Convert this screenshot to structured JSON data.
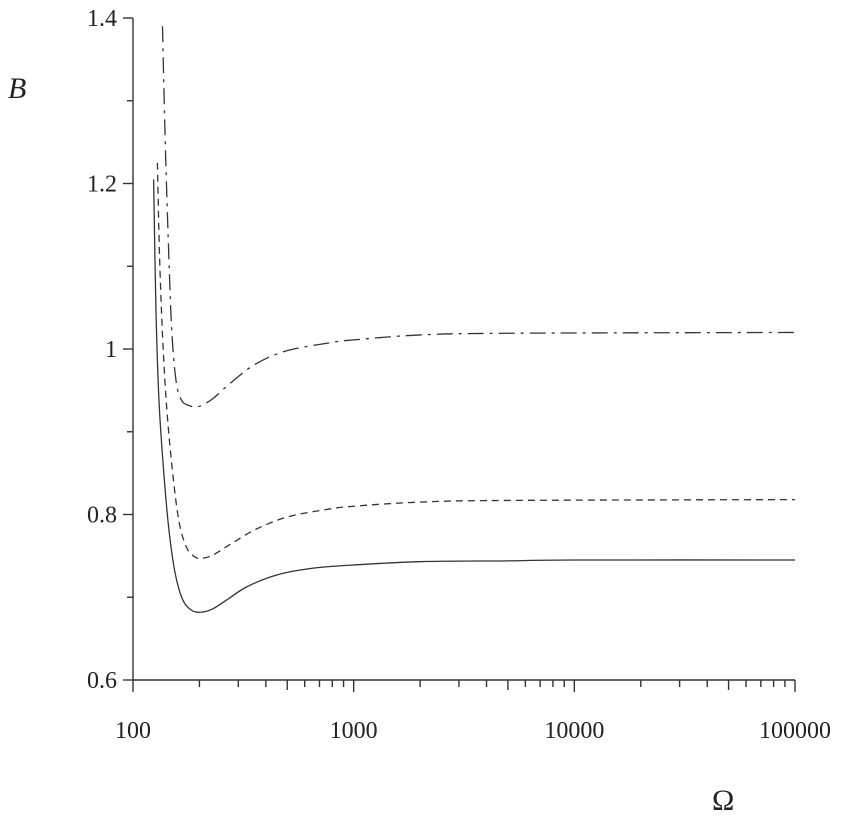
{
  "chart_data": {
    "type": "line",
    "xlabel": "Ω",
    "ylabel": "B",
    "x_scale": "log",
    "xlim": [
      100,
      100000
    ],
    "ylim": [
      0.6,
      1.4
    ],
    "x_ticks": [
      {
        "value": 100,
        "label": "100"
      },
      {
        "value": 1000,
        "label": "1000"
      },
      {
        "value": 10000,
        "label": "10000"
      },
      {
        "value": 100000,
        "label": "100000"
      }
    ],
    "y_ticks": [
      {
        "value": 0.6,
        "label": "0.6"
      },
      {
        "value": 0.8,
        "label": "0.8"
      },
      {
        "value": 1.0,
        "label": "1"
      },
      {
        "value": 1.2,
        "label": "1.2"
      },
      {
        "value": 1.4,
        "label": "1.4"
      }
    ],
    "grid": false,
    "series": [
      {
        "style": "solid",
        "points": [
          [
            124,
            1.205
          ],
          [
            127,
            1.05
          ],
          [
            131,
            0.94
          ],
          [
            137,
            0.86
          ],
          [
            145,
            0.785
          ],
          [
            155,
            0.73
          ],
          [
            168,
            0.697
          ],
          [
            185,
            0.684
          ],
          [
            205,
            0.682
          ],
          [
            230,
            0.686
          ],
          [
            270,
            0.698
          ],
          [
            330,
            0.713
          ],
          [
            450,
            0.727
          ],
          [
            650,
            0.735
          ],
          [
            1000,
            0.739
          ],
          [
            2000,
            0.743
          ],
          [
            5000,
            0.744
          ],
          [
            10000,
            0.745
          ],
          [
            100000,
            0.745
          ]
        ]
      },
      {
        "style": "dashed",
        "points": [
          [
            129,
            1.225
          ],
          [
            132,
            1.11
          ],
          [
            137,
            1.0
          ],
          [
            143,
            0.92
          ],
          [
            152,
            0.845
          ],
          [
            162,
            0.79
          ],
          [
            175,
            0.76
          ],
          [
            190,
            0.749
          ],
          [
            205,
            0.747
          ],
          [
            230,
            0.751
          ],
          [
            280,
            0.765
          ],
          [
            360,
            0.782
          ],
          [
            500,
            0.797
          ],
          [
            750,
            0.806
          ],
          [
            1000,
            0.81
          ],
          [
            2000,
            0.815
          ],
          [
            5000,
            0.817
          ],
          [
            100000,
            0.818
          ]
        ]
      },
      {
        "style": "dash-dot",
        "points": [
          [
            136,
            1.39
          ],
          [
            140,
            1.25
          ],
          [
            145,
            1.12
          ],
          [
            150,
            1.02
          ],
          [
            157,
            0.96
          ],
          [
            166,
            0.938
          ],
          [
            178,
            0.932
          ],
          [
            192,
            0.93
          ],
          [
            205,
            0.932
          ],
          [
            230,
            0.94
          ],
          [
            280,
            0.96
          ],
          [
            360,
            0.982
          ],
          [
            500,
            0.998
          ],
          [
            800,
            1.008
          ],
          [
            1000,
            1.011
          ],
          [
            2000,
            1.017
          ],
          [
            5000,
            1.019
          ],
          [
            100000,
            1.02
          ]
        ]
      }
    ]
  }
}
